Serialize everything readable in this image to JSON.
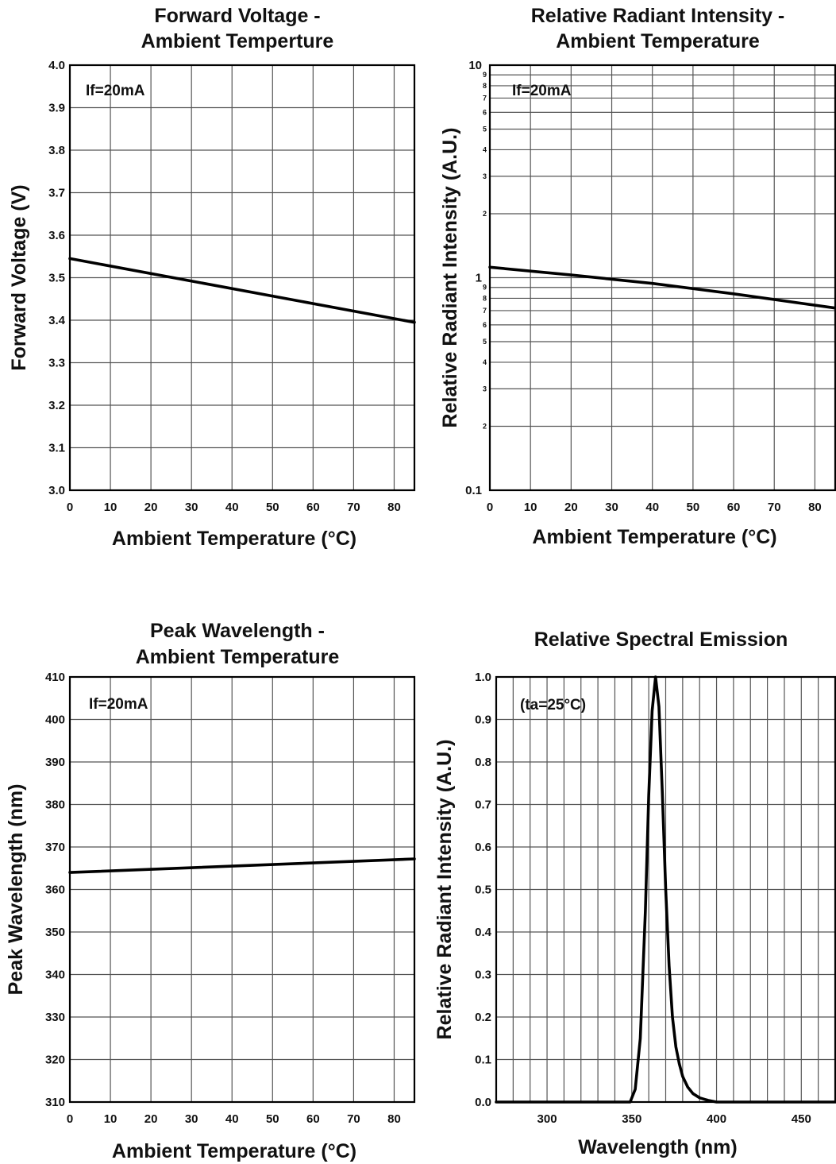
{
  "colors": {
    "line": "#000000",
    "grid": "#555555",
    "frame": "#000000",
    "background": "#ffffff"
  },
  "chart_data": [
    {
      "id": "fv",
      "type": "line",
      "title": [
        "Forward Voltage -",
        "Ambient Temperture"
      ],
      "xlabel": "Ambient Temperature (°C)",
      "ylabel": "Forward Voltage (V)",
      "annotation": "If=20mA",
      "xlim": [
        0,
        85
      ],
      "ylim": [
        3.0,
        4.0
      ],
      "yscale": "linear",
      "grid": true,
      "x_ticks": [
        0,
        10,
        20,
        30,
        40,
        50,
        60,
        70,
        80
      ],
      "x_tick_labels": [
        "0",
        "10",
        "20",
        "30",
        "40",
        "50",
        "60",
        "70",
        "80"
      ],
      "y_ticks": [
        3.0,
        3.1,
        3.2,
        3.3,
        3.4,
        3.5,
        3.6,
        3.7,
        3.8,
        3.9,
        4.0
      ],
      "y_tick_labels": [
        "3.0",
        "3.1",
        "3.2",
        "3.3",
        "3.4",
        "3.5",
        "3.6",
        "3.7",
        "3.8",
        "3.9",
        "4.0"
      ],
      "series": [
        {
          "x": [
            0,
            85
          ],
          "y": [
            3.545,
            3.395
          ]
        }
      ]
    },
    {
      "id": "ri",
      "type": "line",
      "title": [
        "Relative Radiant Intensity -",
        "Ambient Temperature"
      ],
      "xlabel": "Ambient Temperature (°C)",
      "ylabel": "Relative Radiant Intensity (A.U.)",
      "annotation": "If=20mA",
      "xlim": [
        0,
        85
      ],
      "ylim": [
        0.1,
        10
      ],
      "yscale": "log",
      "grid": true,
      "x_ticks": [
        0,
        10,
        20,
        30,
        40,
        50,
        60,
        70,
        80
      ],
      "x_tick_labels": [
        "0",
        "10",
        "20",
        "30",
        "40",
        "50",
        "60",
        "70",
        "80"
      ],
      "y_ticks": [
        0.1,
        1,
        10
      ],
      "y_tick_labels": [
        "0.1",
        "1",
        "10"
      ],
      "y_minor_ticks": [
        2,
        3,
        4,
        5,
        6,
        7,
        8,
        9,
        20,
        30,
        40,
        50,
        60,
        70,
        80,
        90
      ],
      "y_minor_labels": [
        "2",
        "3",
        "4",
        "5",
        "6",
        "7",
        "8",
        "9",
        "2",
        "3",
        "4",
        "5",
        "6",
        "7",
        "8",
        "9"
      ],
      "series": [
        {
          "x": [
            0,
            20,
            40,
            60,
            85
          ],
          "y": [
            1.12,
            1.03,
            0.94,
            0.84,
            0.72
          ]
        }
      ]
    },
    {
      "id": "pw",
      "type": "line",
      "title": [
        "Peak Wavelength -",
        "Ambient Temperature"
      ],
      "xlabel": "Ambient Temperature (°C)",
      "ylabel": "Peak Wavelength (nm)",
      "annotation": "If=20mA",
      "xlim": [
        0,
        85
      ],
      "ylim": [
        310,
        410
      ],
      "yscale": "linear",
      "grid": true,
      "x_ticks": [
        0,
        10,
        20,
        30,
        40,
        50,
        60,
        70,
        80
      ],
      "x_tick_labels": [
        "0",
        "10",
        "20",
        "30",
        "40",
        "50",
        "60",
        "70",
        "80"
      ],
      "y_ticks": [
        310,
        320,
        330,
        340,
        350,
        360,
        370,
        380,
        390,
        400,
        410
      ],
      "y_tick_labels": [
        "310",
        "320",
        "330",
        "340",
        "350",
        "360",
        "370",
        "380",
        "390",
        "400",
        "410"
      ],
      "series": [
        {
          "x": [
            0,
            85
          ],
          "y": [
            364,
            367.2
          ]
        }
      ]
    },
    {
      "id": "se",
      "type": "line",
      "title": [
        "Relative Spectral Emission"
      ],
      "xlabel": "Wavelength (nm)",
      "ylabel": "Relative Radiant Intensity (A.U.)",
      "annotation": "(ta=25°C)",
      "xlim": [
        270,
        470
      ],
      "ylim": [
        0,
        1.0
      ],
      "yscale": "linear",
      "grid": true,
      "x_ticks": [
        300,
        350,
        400,
        450
      ],
      "x_tick_labels": [
        "300",
        "350",
        "400",
        "450"
      ],
      "x_minor_step": 10,
      "y_ticks": [
        0,
        0.1,
        0.2,
        0.3,
        0.4,
        0.5,
        0.6,
        0.7,
        0.8,
        0.9,
        1.0
      ],
      "y_tick_labels": [
        "0.0",
        "0.1",
        "0.2",
        "0.3",
        "0.4",
        "0.5",
        "0.6",
        "0.7",
        "0.8",
        "0.9",
        "1.0"
      ],
      "series": [
        {
          "x": [
            270,
            349,
            352,
            355,
            358,
            360,
            362,
            364,
            366,
            368,
            370,
            372,
            374,
            376,
            378,
            380,
            383,
            386,
            390,
            395,
            400,
            470
          ],
          "y": [
            0,
            0,
            0.03,
            0.15,
            0.45,
            0.72,
            0.92,
            1.0,
            0.93,
            0.73,
            0.5,
            0.32,
            0.2,
            0.13,
            0.09,
            0.06,
            0.035,
            0.02,
            0.01,
            0.004,
            0,
            0
          ]
        }
      ]
    }
  ]
}
